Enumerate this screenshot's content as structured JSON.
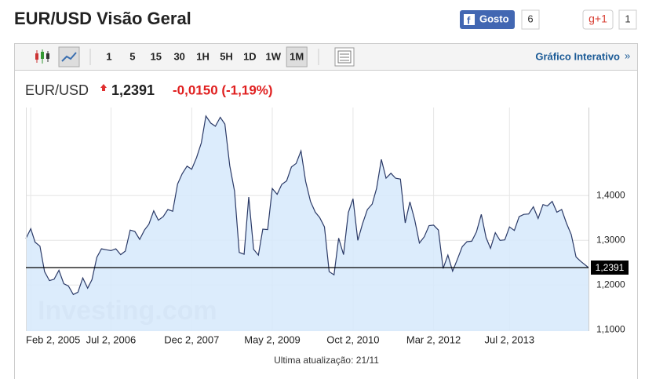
{
  "header": {
    "title": "EUR/USD Visão Geral",
    "like_label": "Gosto",
    "like_count": "6",
    "gplus_label": "g+1",
    "gplus_count": "1"
  },
  "toolbar": {
    "ranges": [
      "1",
      "5",
      "15",
      "30",
      "1H",
      "5H",
      "1D",
      "1W",
      "1M"
    ],
    "active_index": 8,
    "interactive_link": "Gráfico Interativo"
  },
  "quote": {
    "symbol": "EUR/USD",
    "change": "-0,0150 (-1,19%)"
  },
  "footer": "Ultima atualização: 21/11",
  "chart_data": {
    "type": "area",
    "watermark": "Investing.com",
    "color": "#2b3a67",
    "fill": "#d6e9fb",
    "x": [
      "2005-01-02",
      "2005-02-02",
      "2005-03-02",
      "2005-04-02",
      "2005-05-02",
      "2005-06-02",
      "2005-07-02",
      "2005-08-02",
      "2005-09-02",
      "2005-10-02",
      "2005-11-02",
      "2005-12-02",
      "2006-01-02",
      "2006-02-02",
      "2006-03-02",
      "2006-04-02",
      "2006-05-02",
      "2006-06-02",
      "2006-07-02",
      "2006-08-02",
      "2006-09-02",
      "2006-10-02",
      "2006-11-02",
      "2006-12-02",
      "2007-01-02",
      "2007-02-02",
      "2007-03-02",
      "2007-04-02",
      "2007-05-02",
      "2007-06-02",
      "2007-07-02",
      "2007-08-02",
      "2007-09-02",
      "2007-10-02",
      "2007-11-02",
      "2007-12-02",
      "2008-01-02",
      "2008-02-02",
      "2008-03-02",
      "2008-04-02",
      "2008-05-02",
      "2008-06-02",
      "2008-07-02",
      "2008-08-02",
      "2008-09-02",
      "2008-10-02",
      "2008-11-02",
      "2008-12-02",
      "2009-01-02",
      "2009-02-02",
      "2009-03-02",
      "2009-04-02",
      "2009-05-02",
      "2009-06-02",
      "2009-07-02",
      "2009-08-02",
      "2009-09-02",
      "2009-10-02",
      "2009-11-02",
      "2009-12-02",
      "2010-01-02",
      "2010-02-02",
      "2010-03-02",
      "2010-04-02",
      "2010-05-02",
      "2010-06-02",
      "2010-07-02",
      "2010-08-02",
      "2010-09-02",
      "2010-10-02",
      "2010-11-02",
      "2010-12-02",
      "2011-01-02",
      "2011-02-02",
      "2011-03-02",
      "2011-04-02",
      "2011-05-02",
      "2011-06-02",
      "2011-07-02",
      "2011-08-02",
      "2011-09-02",
      "2011-10-02",
      "2011-11-02",
      "2011-12-02",
      "2012-01-02",
      "2012-02-02",
      "2012-03-02",
      "2012-04-02",
      "2012-05-02",
      "2012-06-02",
      "2012-07-02",
      "2012-08-02",
      "2012-09-02",
      "2012-10-02",
      "2012-11-02",
      "2012-12-02",
      "2013-01-02",
      "2013-02-02",
      "2013-03-02",
      "2013-04-02",
      "2013-05-02",
      "2013-06-02",
      "2013-07-02",
      "2013-08-02",
      "2013-09-02",
      "2013-10-02",
      "2013-11-02",
      "2013-12-02",
      "2014-01-02",
      "2014-02-02",
      "2014-03-02",
      "2014-04-02",
      "2014-05-02",
      "2014-06-02",
      "2014-07-02",
      "2014-08-02",
      "2014-09-02",
      "2014-10-02",
      "2014-11-21"
    ],
    "values": [
      1.304,
      1.326,
      1.296,
      1.287,
      1.23,
      1.21,
      1.213,
      1.233,
      1.203,
      1.198,
      1.179,
      1.184,
      1.216,
      1.193,
      1.212,
      1.262,
      1.281,
      1.279,
      1.277,
      1.281,
      1.268,
      1.276,
      1.323,
      1.32,
      1.302,
      1.323,
      1.336,
      1.366,
      1.345,
      1.353,
      1.369,
      1.365,
      1.426,
      1.449,
      1.466,
      1.459,
      1.485,
      1.518,
      1.578,
      1.562,
      1.555,
      1.575,
      1.56,
      1.467,
      1.41,
      1.273,
      1.269,
      1.397,
      1.28,
      1.267,
      1.325,
      1.324,
      1.416,
      1.403,
      1.425,
      1.433,
      1.464,
      1.472,
      1.5,
      1.432,
      1.387,
      1.363,
      1.351,
      1.33,
      1.23,
      1.223,
      1.305,
      1.268,
      1.362,
      1.393,
      1.3,
      1.337,
      1.369,
      1.381,
      1.416,
      1.481,
      1.439,
      1.45,
      1.439,
      1.437,
      1.339,
      1.386,
      1.346,
      1.294,
      1.308,
      1.333,
      1.334,
      1.323,
      1.237,
      1.267,
      1.231,
      1.258,
      1.286,
      1.297,
      1.298,
      1.319,
      1.358,
      1.306,
      1.282,
      1.317,
      1.3,
      1.301,
      1.33,
      1.322,
      1.353,
      1.358,
      1.359,
      1.375,
      1.349,
      1.38,
      1.377,
      1.387,
      1.363,
      1.369,
      1.339,
      1.313,
      1.263,
      1.253,
      1.2391
    ],
    "last": {
      "value": 1.2391,
      "label": "1,2391"
    },
    "xlim": [
      "2005-01-02",
      "2014-11-21"
    ],
    "xticks": [
      {
        "value": "2005-02-02",
        "label": "Feb 2, 2005"
      },
      {
        "value": "2006-07-02",
        "label": "Jul 2, 2006"
      },
      {
        "value": "2007-12-02",
        "label": "Dec 2, 2007"
      },
      {
        "value": "2009-05-02",
        "label": "May 2, 2009"
      },
      {
        "value": "2010-10-02",
        "label": "Oct 2, 2010"
      },
      {
        "value": "2012-03-02",
        "label": "Mar 2, 2012"
      },
      {
        "value": "2013-07-02",
        "label": "Jul 2, 2013"
      }
    ],
    "ylim": [
      1.097,
      1.597
    ],
    "yticks": [
      {
        "value": 1.1,
        "label": "1,1000"
      },
      {
        "value": 1.2,
        "label": "1,2000"
      },
      {
        "value": 1.3,
        "label": "1,3000"
      },
      {
        "value": 1.4,
        "label": "1,4000"
      }
    ],
    "grid": true
  }
}
